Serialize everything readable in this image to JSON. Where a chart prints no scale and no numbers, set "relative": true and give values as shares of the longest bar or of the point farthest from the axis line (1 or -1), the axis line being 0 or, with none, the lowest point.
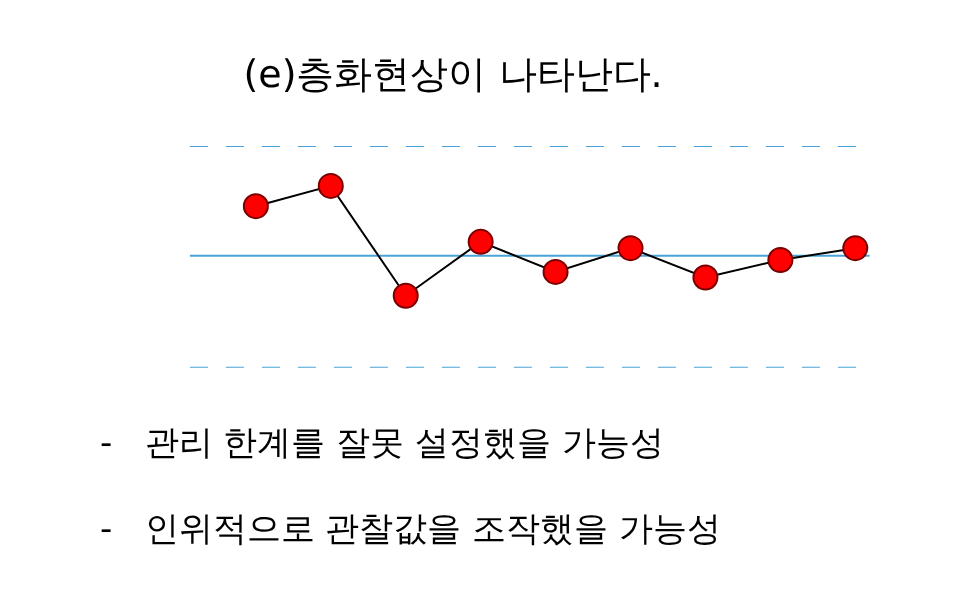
{
  "chart_data": {
    "type": "line",
    "title": "(e)층화현상이 나타난다.",
    "relative": true,
    "categories": [
      null,
      null,
      null,
      null,
      null,
      null,
      null,
      null,
      null
    ],
    "series": [
      {
        "color": "#000000",
        "colors": [
          "#ff0000",
          "#ff0000",
          "#ff0000",
          "#ff0000",
          "#ff0000",
          "#ff0000",
          "#ff0000",
          "#ff0000",
          "#ff0000"
        ],
        "values": [
          0.71,
          1,
          -0.57,
          0.2,
          -0.23,
          0.11,
          -0.31,
          -0.06,
          0.11
        ]
      }
    ],
    "marker": "circle",
    "line_style": "solid",
    "grid": false,
    "legend": false,
    "ref_lines": [
      {
        "axis": "y",
        "value": 1.57,
        "color": "#4aa3d8",
        "line_style": "dashed"
      },
      {
        "axis": "y",
        "value": 0,
        "color": "#4aa3d8",
        "line_style": "solid"
      },
      {
        "axis": "y",
        "value": -1.6,
        "color": "#4aa3d8",
        "line_style": "dashed"
      }
    ],
    "annotations": [
      "-   관리 한계를 잘못 설정했을 가능성",
      "-   인위적으로 관찰값을 조작했을 가능성"
    ]
  }
}
